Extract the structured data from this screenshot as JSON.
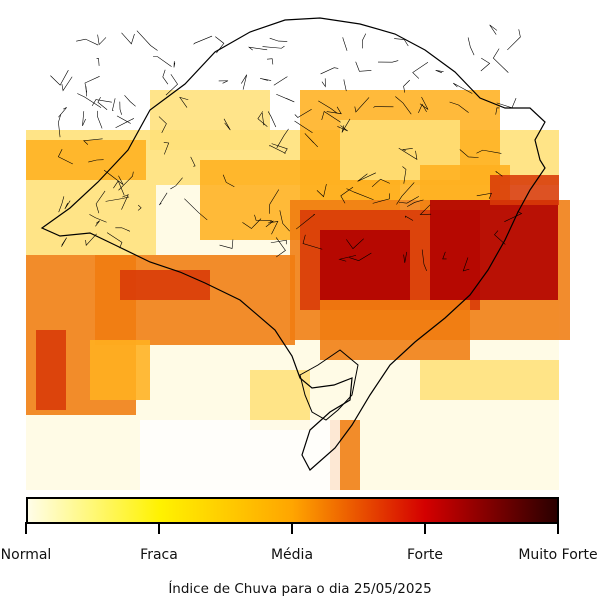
{
  "map": {
    "caption": "Índice de Chuva para o dia 25/05/2025"
  },
  "legend": {
    "levels": [
      "Normal",
      "Fraca",
      "Média",
      "Forte",
      "Muito Forte"
    ],
    "stops": [
      "#fffde8",
      "#fff200",
      "#ffa500",
      "#d40000",
      "#2a0000"
    ]
  },
  "colors": {
    "normal": "#fffbe6",
    "weak": "#ffe07a",
    "mid": "#ffb020",
    "orange": "#f07c10",
    "strong": "#d83a08",
    "verystrong": "#b00000"
  }
}
